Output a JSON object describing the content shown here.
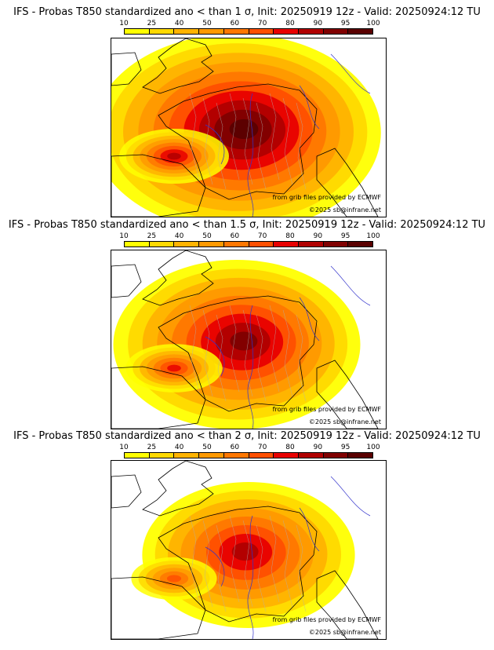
{
  "colors": {
    "bins": [
      "#ffff00",
      "#ffd900",
      "#ffb300",
      "#ff9900",
      "#ff7700",
      "#ff4f00",
      "#e80000",
      "#b00000",
      "#800000",
      "#5a0000"
    ],
    "land": "#ffffff",
    "border": "#000000",
    "river": "#3333cc",
    "admin": "#b0b0b0"
  },
  "legend": {
    "ticks": [
      "10",
      "25",
      "40",
      "50",
      "60",
      "70",
      "80",
      "90",
      "95",
      "100"
    ]
  },
  "panels": [
    {
      "title": "IFS - Probas T850  standardized ano < than 1 σ, Init: 20250919 12z - Valid: 20250924:12 TU",
      "credit_source": "from grib files provided by ECMWF",
      "credit_copy": "©2025 sb@infrane.net",
      "intensity": 1.0
    },
    {
      "title": "IFS - Probas T850  standardized ano < than 1.5 σ, Init: 20250919 12z - Valid: 20250924:12 TU",
      "credit_source": "from grib files provided by ECMWF",
      "credit_copy": "©2025 sb@infrane.net",
      "intensity": 0.7
    },
    {
      "title": "IFS - Probas T850  standardized ano < than 2 σ, Init: 20250919 12z - Valid: 20250924:12 TU",
      "credit_source": "from grib files provided by ECMWF",
      "credit_copy": "©2025 sb@infrane.net",
      "intensity": 0.45
    }
  ]
}
